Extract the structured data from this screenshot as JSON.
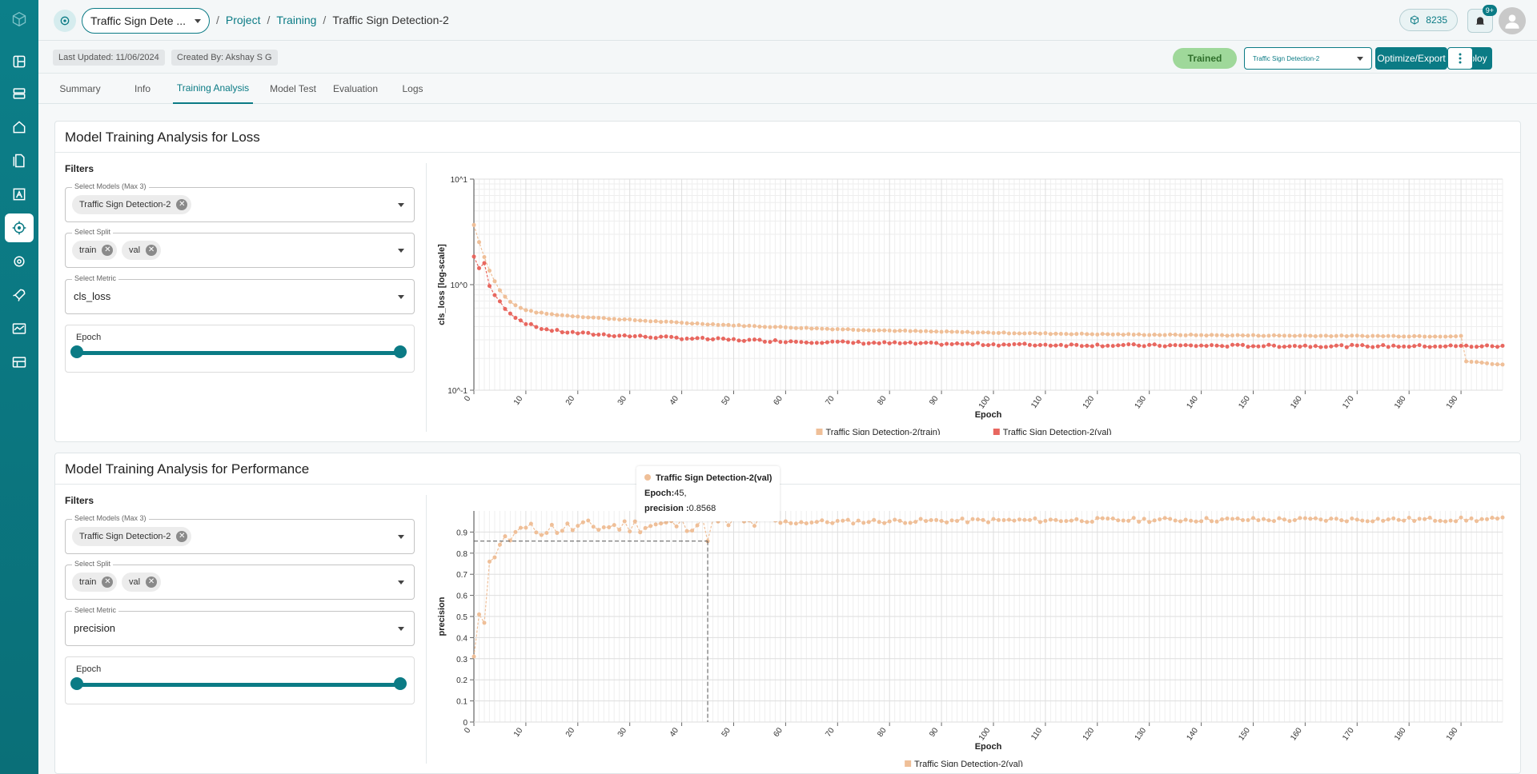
{
  "colors": {
    "accent": "#0b7b85",
    "train": "#efbf98",
    "val": "#e8675f",
    "trained_badge": "#9fd89a"
  },
  "topbar": {
    "project_select": "Traffic Sign Dete ...",
    "breadcrumb": [
      "Project",
      "Training",
      "Traffic Sign Detection-2"
    ],
    "credits": "8235",
    "notifications_badge": "9+"
  },
  "meta": {
    "last_updated": "Last Updated: 11/06/2024",
    "created_by": "Created By: Akshay S G",
    "status": "Trained",
    "model_select": "Traffic Sign Detection-2",
    "optimize_label": "Optimize/Export",
    "deploy_label": "Deploy"
  },
  "tabs": [
    "Summary",
    "Info",
    "Training Analysis",
    "Model Test",
    "Evaluation",
    "Logs"
  ],
  "active_tab": "Training Analysis",
  "panels": [
    {
      "title": "Model Training Analysis for Loss",
      "filters_label": "Filters",
      "models_label": "Select Models (Max 3)",
      "model_tag": "Traffic Sign Detection-2",
      "split_label": "Select Split",
      "split_tags": [
        "train",
        "val"
      ],
      "metric_label": "Select Metric",
      "metric_value": "cls_loss",
      "epoch_label": "Epoch",
      "epoch_range": [
        0,
        1
      ]
    },
    {
      "title": "Model Training Analysis for Performance",
      "filters_label": "Filters",
      "models_label": "Select Models (Max 3)",
      "model_tag": "Traffic Sign Detection-2",
      "split_label": "Select Split",
      "split_tags": [
        "train",
        "val"
      ],
      "metric_label": "Select Metric",
      "metric_value": "precision",
      "epoch_label": "Epoch",
      "epoch_range": [
        0,
        1
      ]
    }
  ],
  "tooltip": {
    "series": "Traffic Sign Detection-2(val)",
    "epoch_label": "Epoch:",
    "epoch_value": "45,",
    "metric_label": "precision :",
    "metric_value": "0.8568"
  },
  "chart_data": [
    {
      "type": "line",
      "scale": "log",
      "xlabel": "Epoch",
      "ylabel": "cls_loss [log-scale]",
      "y_ticks": [
        "10^1",
        "10^0",
        "10^-1"
      ],
      "ylim": [
        0.1,
        10
      ],
      "xlim": [
        0,
        198
      ],
      "x_ticks": [
        0,
        10,
        20,
        30,
        40,
        50,
        60,
        70,
        80,
        90,
        100,
        110,
        120,
        130,
        140,
        150,
        160,
        170,
        180,
        190
      ],
      "grid": true,
      "legend_position": "bottom",
      "series": [
        {
          "name": "Traffic Sign Detection-2(train)",
          "color": "#efbf98",
          "start": 3.4,
          "end": 0.32,
          "drop_at": 190,
          "drop_to": 0.19
        },
        {
          "name": "Traffic Sign Detection-2(val)",
          "color": "#e8675f",
          "start": 1.7,
          "end": 0.26
        }
      ]
    },
    {
      "type": "line",
      "xlabel": "Epoch",
      "ylabel": "precision",
      "y_ticks": [
        "0",
        "0.1",
        "0.2",
        "0.3",
        "0.4",
        "0.5",
        "0.6",
        "0.7",
        "0.8",
        "0.9"
      ],
      "ylim": [
        0,
        1
      ],
      "xlim": [
        0,
        198
      ],
      "x_ticks": [
        0,
        10,
        20,
        30,
        40,
        50,
        60,
        70,
        80,
        90,
        100,
        110,
        120,
        130,
        140,
        150,
        160,
        170,
        180,
        190
      ],
      "grid": true,
      "legend_position": "bottom",
      "highlight": {
        "epoch": 45,
        "value": 0.8568
      },
      "series": [
        {
          "name": "Traffic Sign Detection-2(val)",
          "color": "#efbf98",
          "start": 0.31,
          "plateau": 0.96
        }
      ]
    }
  ]
}
